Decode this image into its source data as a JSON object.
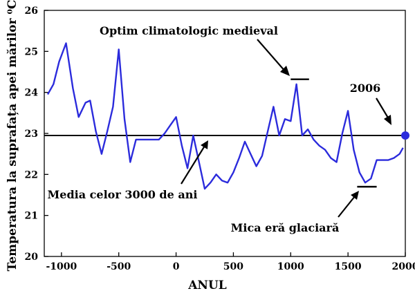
{
  "chart_data": {
    "type": "line",
    "title": "",
    "xlabel": "ANUL",
    "ylabel": "Temperatura la suprafața apei mărilor ⁰C",
    "xlim": [
      -1150,
      2000
    ],
    "ylim": [
      20,
      26
    ],
    "xticks": [
      -1000,
      -500,
      0,
      500,
      1000,
      1500,
      2000
    ],
    "yticks": [
      20,
      21,
      22,
      23,
      24,
      25,
      26
    ],
    "grid": false,
    "colors": {
      "series": "#2b2bdc",
      "reference": "#000000",
      "frame": "#000000"
    },
    "series": [
      {
        "x": [
          -1120,
          -1070,
          -1020,
          -960,
          -900,
          -850,
          -790,
          -750,
          -700,
          -650,
          -600,
          -550,
          -500,
          -450,
          -400,
          -350,
          -300,
          -250,
          -200,
          -150,
          -100,
          -50,
          0,
          50,
          100,
          150,
          200,
          250,
          300,
          350,
          400,
          450,
          500,
          550,
          600,
          650,
          700,
          750,
          800,
          850,
          900,
          950,
          1000,
          1050,
          1100,
          1150,
          1200,
          1250,
          1300,
          1350,
          1400,
          1450,
          1500,
          1550,
          1600,
          1650,
          1700,
          1750,
          1800,
          1850,
          1900,
          1950,
          1980
        ],
        "y": [
          23.95,
          24.2,
          24.75,
          25.2,
          24.1,
          23.4,
          23.75,
          23.8,
          23.05,
          22.5,
          23.05,
          23.65,
          25.05,
          23.35,
          22.3,
          22.85,
          22.85,
          22.85,
          22.85,
          22.85,
          23.0,
          23.2,
          23.4,
          22.7,
          22.15,
          22.95,
          22.3,
          21.65,
          21.8,
          22.0,
          21.85,
          21.8,
          22.05,
          22.4,
          22.8,
          22.5,
          22.2,
          22.45,
          23.05,
          23.65,
          22.95,
          23.35,
          23.3,
          24.2,
          22.95,
          23.1,
          22.85,
          22.7,
          22.6,
          22.4,
          22.3,
          23.0,
          23.55,
          22.6,
          22.05,
          21.8,
          21.9,
          22.35,
          22.35,
          22.35,
          22.4,
          22.5,
          22.65
        ]
      }
    ],
    "reference_line": {
      "y": 22.95,
      "label": "Media celor 3000 de ani"
    },
    "markers": [
      {
        "x": 2000,
        "y": 22.95,
        "label": "2006"
      }
    ],
    "annotations": {
      "medieval": {
        "label": "Optim climatologic medieval",
        "x_start": 1000,
        "x_end": 1160,
        "y": 24.32
      },
      "glacial": {
        "label": "Mica eră glaciară",
        "x_start": 1580,
        "x_end": 1750,
        "y": 21.7
      },
      "mean": {
        "label": "Media celor 3000 de ani"
      },
      "marker": {
        "label": "2006"
      }
    }
  }
}
